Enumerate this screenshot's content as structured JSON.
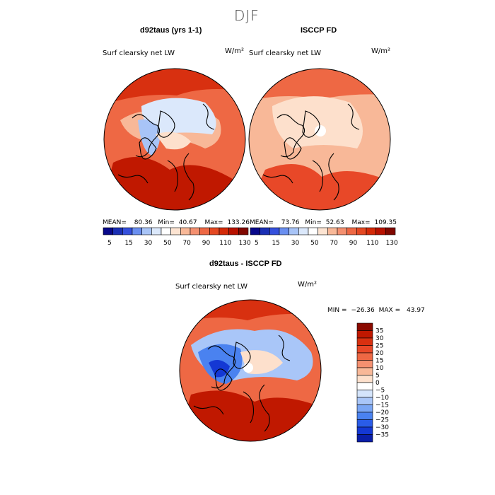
{
  "figure": {
    "title": "DJF",
    "colors": {
      "coast": "#000000",
      "neg_scale": [
        "#00007a",
        "#0a1ea8",
        "#1438d4",
        "#2a5ce8",
        "#4a82f0",
        "#7aa6f4",
        "#a9c6f8",
        "#d4e4fb"
      ],
      "pos_scale": [
        "#fde0cc",
        "#f8b898",
        "#f49070",
        "#ee6844",
        "#e84828",
        "#d83010",
        "#c01800",
        "#8a0a00"
      ]
    }
  },
  "chart_data": [
    {
      "type": "heatmap",
      "projection": "north-polar-stereographic",
      "title": "d92taus (yrs 1-1)",
      "variable": "Surf clearsky net LW",
      "units": "W/m²",
      "mean_label": "MEAN=",
      "mean": "80.36",
      "min_label": "Min=",
      "min": "40.67",
      "max_label": "Max=",
      "max": "133.26",
      "colorbar": {
        "orientation": "horizontal",
        "ticks": [
          "5",
          "15",
          "30",
          "50",
          "70",
          "90",
          "110",
          "130"
        ],
        "colors": [
          "#08088a",
          "#1a2fb4",
          "#3550dc",
          "#6a8ff0",
          "#a8c4f7",
          "#dbe8fb",
          "#ffffff",
          "#fde4d2",
          "#f8b898",
          "#f49070",
          "#ee6844",
          "#e44822",
          "#d42a08",
          "#b81200",
          "#800800"
        ]
      }
    },
    {
      "type": "heatmap",
      "projection": "north-polar-stereographic",
      "title": "ISCCP FD",
      "variable": "Surf clearsky net LW",
      "units": "W/m²",
      "mean_label": "MEAN=",
      "mean": "73.76",
      "min_label": "Min=",
      "min": "52.63",
      "max_label": "Max=",
      "max": "109.35",
      "colorbar": {
        "orientation": "horizontal",
        "ticks": [
          "5",
          "15",
          "30",
          "50",
          "70",
          "90",
          "110",
          "130"
        ],
        "colors": [
          "#08088a",
          "#1a2fb4",
          "#3550dc",
          "#6a8ff0",
          "#a8c4f7",
          "#dbe8fb",
          "#ffffff",
          "#fde4d2",
          "#f8b898",
          "#f49070",
          "#ee6844",
          "#e44822",
          "#d42a08",
          "#b81200",
          "#800800"
        ]
      }
    },
    {
      "type": "heatmap",
      "projection": "north-polar-stereographic",
      "title": "d92taus - ISCCP FD",
      "variable": "Surf clearsky net LW",
      "units": "W/m²",
      "min_label": "MIN =",
      "min": "−26.36",
      "max_label": "MAX =",
      "max": "43.97",
      "colorbar": {
        "orientation": "vertical",
        "ticks": [
          "35",
          "30",
          "25",
          "20",
          "15",
          "10",
          "5",
          "0",
          "−5",
          "−10",
          "−15",
          "−20",
          "−25",
          "−30",
          "−35"
        ],
        "colors": [
          "#8a0a00",
          "#c01800",
          "#d83010",
          "#e84828",
          "#ee6844",
          "#f49070",
          "#f8b898",
          "#fde0cc",
          "#ffffff",
          "#d4e4fb",
          "#a9c6f8",
          "#7aa6f4",
          "#4a82f0",
          "#2a5ce8",
          "#1438d4",
          "#0a1ea8"
        ]
      }
    }
  ]
}
